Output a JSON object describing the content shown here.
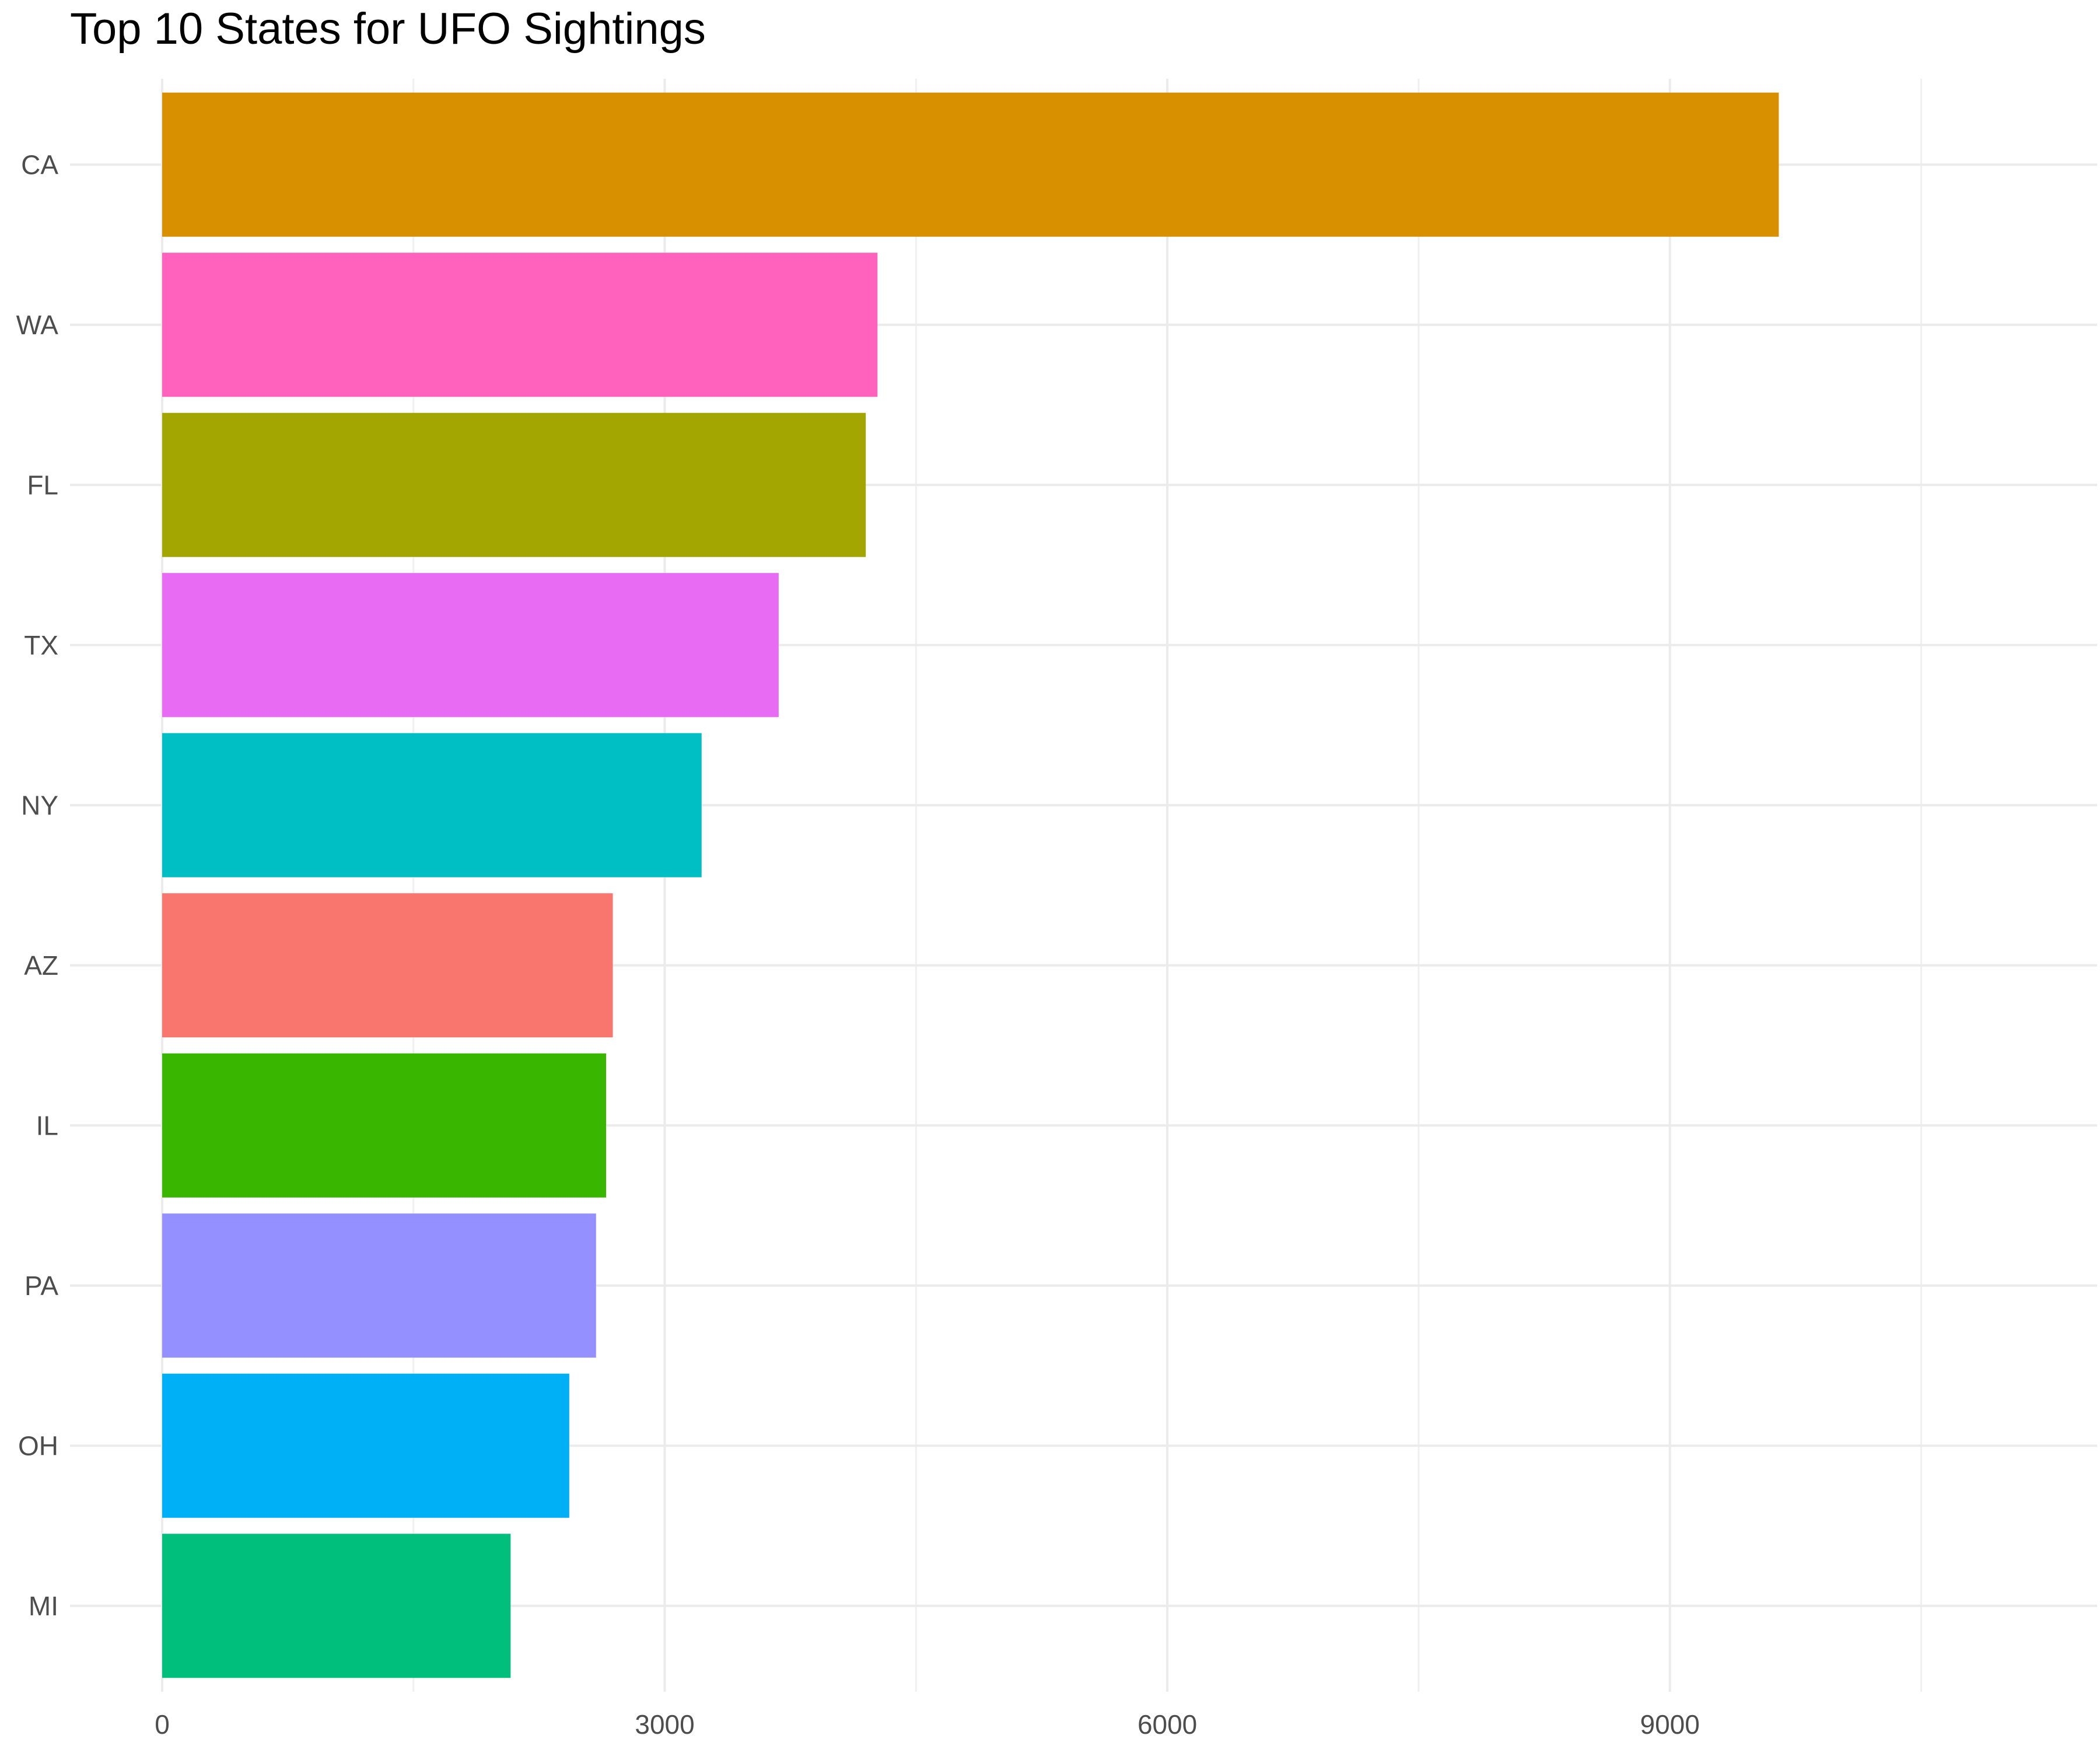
{
  "chart_data": {
    "type": "bar",
    "orientation": "horizontal",
    "title": "Top 10 States for UFO Sightings",
    "xlabel": "",
    "ylabel": "",
    "categories": [
      "CA",
      "WA",
      "FL",
      "TX",
      "NY",
      "AZ",
      "IL",
      "PA",
      "OH",
      "MI"
    ],
    "values": [
      9650,
      4270,
      4200,
      3680,
      3220,
      2690,
      2650,
      2590,
      2430,
      2080
    ],
    "colors": [
      "#D89000",
      "#FF62BC",
      "#A3A500",
      "#E76BF3",
      "#00BFC4",
      "#F8766D",
      "#39B600",
      "#9590FF",
      "#00B0F6",
      "#00BF7D"
    ],
    "xlim": [
      0,
      11550
    ],
    "x_ticks": [
      0,
      3000,
      6000,
      9000
    ],
    "x_tick_labels": [
      "0",
      "3000",
      "6000",
      "9000"
    ],
    "grid": true,
    "legend": "none"
  }
}
